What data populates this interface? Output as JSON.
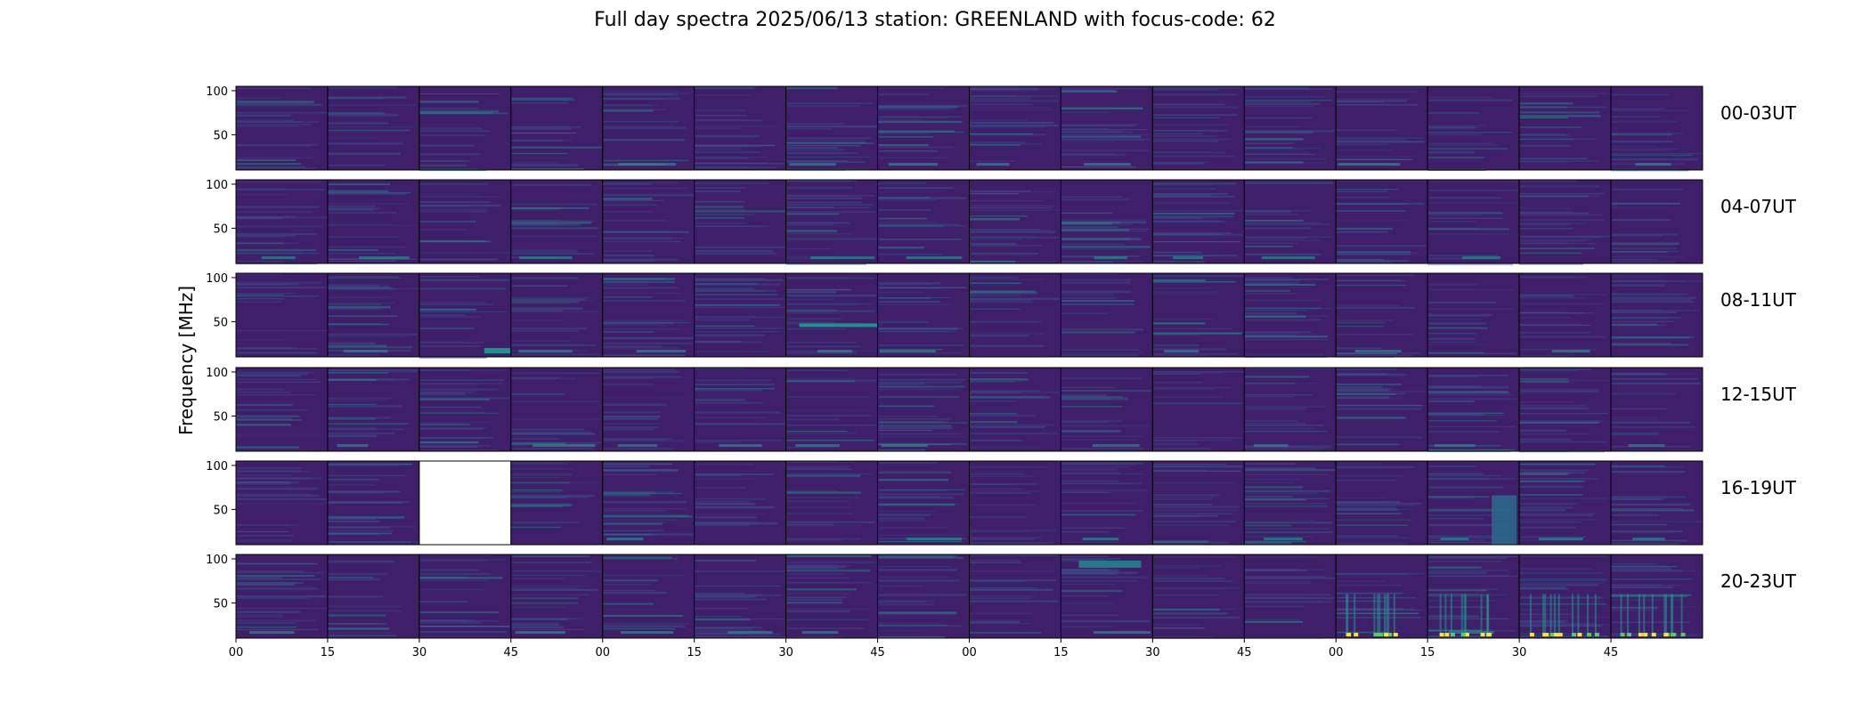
{
  "chart_data": {
    "type": "heatmap",
    "title": "Full day spectra 2025/06/13 station: GREENLAND with focus-code: 62",
    "ylabel": "Frequency [MHz]",
    "yticks": [
      50,
      100
    ],
    "ylim": [
      10,
      105
    ],
    "xticks": [
      "00",
      "15",
      "30",
      "45",
      "00",
      "15",
      "30",
      "45",
      "00",
      "15",
      "30",
      "45",
      "00",
      "15",
      "30",
      "45"
    ],
    "colormap": "viridis",
    "panels_per_row": 16,
    "rows": [
      {
        "label": "00-03UT",
        "missing_panels": []
      },
      {
        "label": "04-07UT",
        "missing_panels": []
      },
      {
        "label": "08-11UT",
        "missing_panels": []
      },
      {
        "label": "12-15UT",
        "missing_panels": []
      },
      {
        "label": "16-19UT",
        "missing_panels": [
          2
        ]
      },
      {
        "label": "20-23UT",
        "missing_panels": []
      }
    ],
    "colors": {
      "background": "#3f1f6a",
      "low": "#440154",
      "mid": "#3b528b",
      "teal": "#21918c",
      "green": "#5ec962",
      "yellow": "#fde725"
    }
  }
}
